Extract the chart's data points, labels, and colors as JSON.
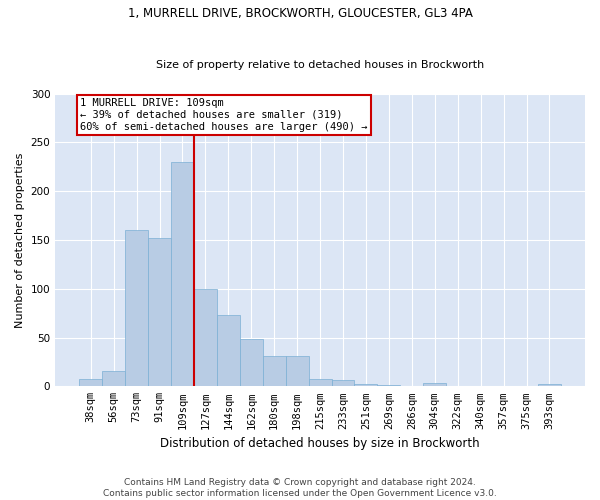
{
  "title1": "1, MURRELL DRIVE, BROCKWORTH, GLOUCESTER, GL3 4PA",
  "title2": "Size of property relative to detached houses in Brockworth",
  "xlabel": "Distribution of detached houses by size in Brockworth",
  "ylabel": "Number of detached properties",
  "footer1": "Contains HM Land Registry data © Crown copyright and database right 2024.",
  "footer2": "Contains public sector information licensed under the Open Government Licence v3.0.",
  "annotation_line1": "1 MURRELL DRIVE: 109sqm",
  "annotation_line2": "← 39% of detached houses are smaller (319)",
  "annotation_line3": "60% of semi-detached houses are larger (490) →",
  "categories": [
    "38sqm",
    "56sqm",
    "73sqm",
    "91sqm",
    "109sqm",
    "127sqm",
    "144sqm",
    "162sqm",
    "180sqm",
    "198sqm",
    "215sqm",
    "233sqm",
    "251sqm",
    "269sqm",
    "286sqm",
    "304sqm",
    "322sqm",
    "340sqm",
    "357sqm",
    "375sqm",
    "393sqm"
  ],
  "values": [
    7,
    16,
    160,
    152,
    230,
    100,
    73,
    48,
    31,
    31,
    7,
    6,
    2,
    1,
    0,
    3,
    0,
    0,
    0,
    0,
    2
  ],
  "bar_color": "#b8cce4",
  "bar_edge_color": "#7bafd4",
  "line_color": "#cc0000",
  "annotation_box_color": "#cc0000",
  "background_color": "#dce6f5",
  "ylim": [
    0,
    300
  ],
  "yticks": [
    0,
    50,
    100,
    150,
    200,
    250,
    300
  ],
  "vline_index": 4,
  "title1_fontsize": 8.5,
  "title2_fontsize": 8.0,
  "xlabel_fontsize": 8.5,
  "ylabel_fontsize": 8.0,
  "tick_fontsize": 7.5,
  "annotation_fontsize": 7.5,
  "footer_fontsize": 6.5
}
